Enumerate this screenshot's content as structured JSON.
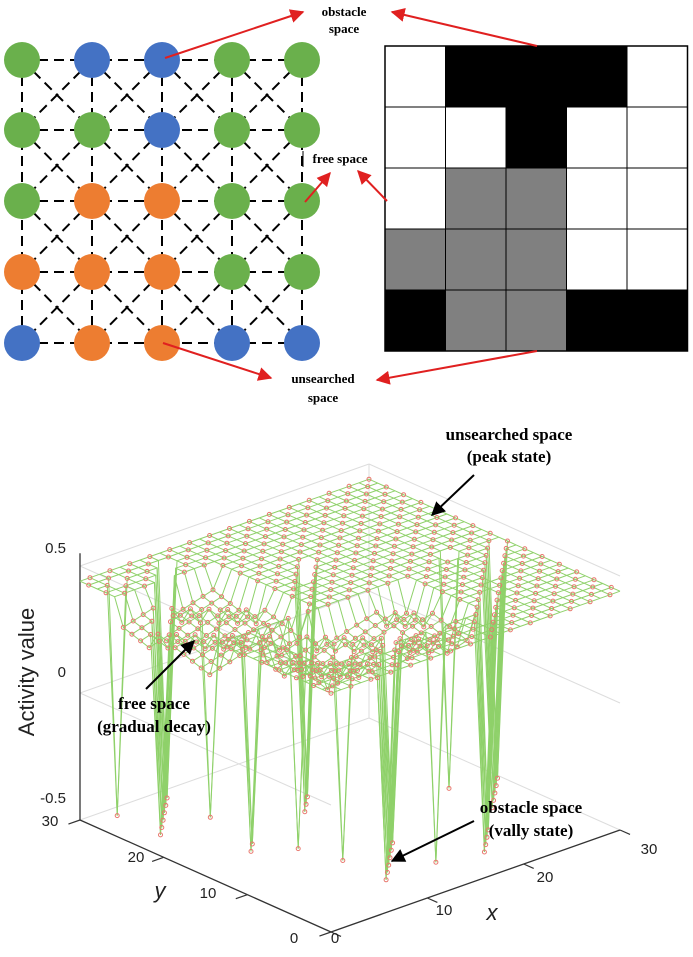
{
  "top_diagram": {
    "node_grid": [
      [
        "green",
        "blue",
        "blue",
        "green",
        "green"
      ],
      [
        "green",
        "green",
        "blue",
        "green",
        "green"
      ],
      [
        "green",
        "orange",
        "orange",
        "green",
        "green"
      ],
      [
        "orange",
        "orange",
        "orange",
        "green",
        "green"
      ],
      [
        "blue",
        "orange",
        "orange",
        "blue",
        "blue"
      ]
    ],
    "cell_grid": [
      [
        "white",
        "black",
        "black",
        "black",
        "white"
      ],
      [
        "white",
        "white",
        "black",
        "white",
        "white"
      ],
      [
        "white",
        "gray",
        "gray",
        "white",
        "white"
      ],
      [
        "gray",
        "gray",
        "gray",
        "white",
        "white"
      ],
      [
        "black",
        "gray",
        "gray",
        "black",
        "black"
      ]
    ],
    "colors": {
      "green": "#6ab04c",
      "blue": "#4472c4",
      "orange": "#ed7d31",
      "white": "#ffffff",
      "gray": "#808080",
      "black": "#000000",
      "arrow": "#e02020"
    },
    "labels": {
      "obstacle_line1": "obstacle",
      "obstacle_line2": "space",
      "free": "free space",
      "unsearched_line1": "unsearched",
      "unsearched_line2": "space"
    }
  },
  "surface_plot": {
    "annotations": {
      "unsearched_line1": "unsearched space",
      "unsearched_line2": "(peak state)",
      "free_line1": "free space",
      "free_line2": "(gradual decay)",
      "obstacle_line1": "obstacle space",
      "obstacle_line2": "(vally state)"
    },
    "colors": {
      "mesh": "#8fd16a",
      "marker": "#e8786e",
      "axis": "#333333",
      "grid": "#dddddd"
    }
  },
  "chart_data": {
    "type": "surface",
    "title": "",
    "xlabel": "x",
    "ylabel": "y",
    "zlabel": "Activity value",
    "xlim": [
      0,
      30
    ],
    "ylim": [
      0,
      30
    ],
    "zlim": [
      -0.5,
      0.5
    ],
    "x_ticks": [
      "10",
      "20",
      "30"
    ],
    "y_ticks": [
      "0",
      "10",
      "20",
      "30"
    ],
    "z_ticks": [
      "0.5",
      "0",
      "-0.5"
    ],
    "grid_size": 30,
    "levels": {
      "unsearched_peak": 0.44,
      "free_min": 0.3,
      "obstacle_valley": -0.48
    }
  }
}
